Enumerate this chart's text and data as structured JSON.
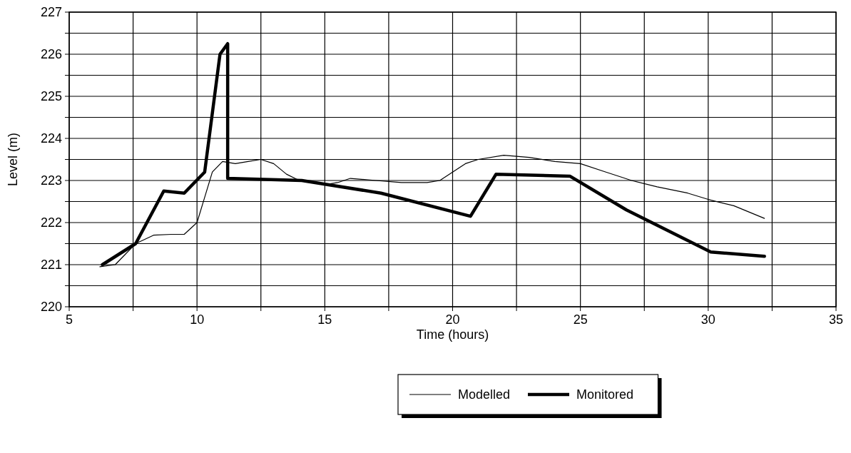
{
  "chart_data": {
    "type": "line",
    "xlabel": "Time (hours)",
    "ylabel": "Level (m)",
    "xlim": [
      5,
      35
    ],
    "xticks": [
      5,
      {
        "value": 7.5,
        "label": null
      },
      10,
      {
        "value": 12.5,
        "label": null
      },
      15,
      {
        "value": 17.5,
        "label": null
      },
      20,
      {
        "value": 22.5,
        "label": null
      },
      25,
      {
        "value": 27.5,
        "label": null
      },
      30,
      {
        "value": 32.5,
        "label": null
      },
      35
    ],
    "ylim": [
      220,
      227
    ],
    "yticks": [
      220,
      {
        "value": 220.5,
        "label": null
      },
      221,
      {
        "value": 221.5,
        "label": null
      },
      222,
      {
        "value": 222.5,
        "label": null
      },
      223,
      {
        "value": 223.5,
        "label": null
      },
      224,
      {
        "value": 224.5,
        "label": null
      },
      225,
      {
        "value": 225.5,
        "label": null
      },
      226,
      {
        "value": 226.5,
        "label": null
      },
      227
    ],
    "grid": true,
    "legend": "bottom",
    "marker": "none",
    "series": [
      {
        "name": "Modelled",
        "color": "#000000",
        "x": [
          6.2,
          6.8,
          7.6,
          8.3,
          9,
          9.5,
          10,
          10.3,
          10.6,
          11,
          11.5,
          12,
          12.5,
          13,
          13.5,
          14,
          15,
          15.5,
          16,
          17,
          18,
          19,
          19.5,
          20,
          20.5,
          21,
          22,
          23,
          24,
          25,
          26,
          26.6,
          27,
          28,
          29.2,
          30,
          31,
          32.2
        ],
        "values": [
          220.95,
          221,
          221.5,
          221.7,
          221.72,
          221.72,
          222,
          222.6,
          223.2,
          223.45,
          223.4,
          223.45,
          223.5,
          223.4,
          223.15,
          223,
          222.9,
          222.95,
          223.05,
          223,
          222.95,
          222.95,
          223,
          223.2,
          223.4,
          223.5,
          223.6,
          223.55,
          223.45,
          223.4,
          223.2,
          223.08,
          223,
          222.85,
          222.7,
          222.55,
          222.4,
          222.1
        ]
      },
      {
        "name": "Monitored",
        "color": "#000000",
        "x": [
          6.3,
          7.6,
          8.7,
          9.5,
          10.3,
          10.9,
          11.2,
          11.2,
          14.1,
          17.2,
          20.7,
          21.7,
          24.6,
          26.8,
          30.1,
          32.2
        ],
        "values": [
          221,
          221.5,
          222.75,
          222.7,
          223.2,
          226,
          226.25,
          223.05,
          223,
          222.7,
          222.15,
          223.15,
          223.1,
          222.3,
          221.3,
          221.2
        ]
      }
    ]
  }
}
